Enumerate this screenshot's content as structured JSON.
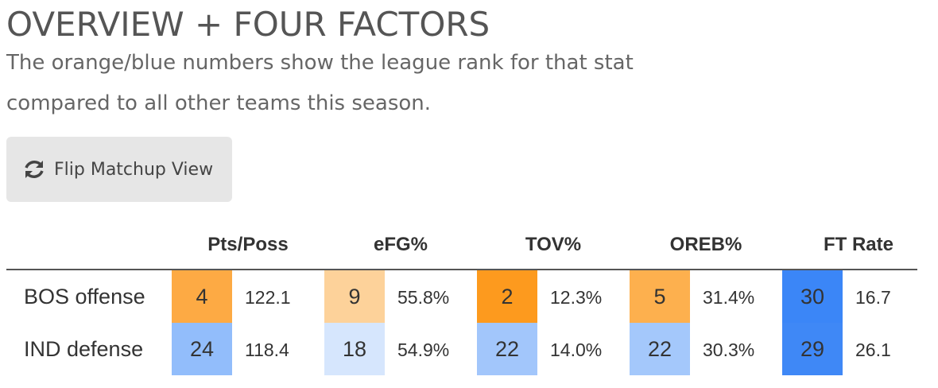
{
  "header": {
    "title": "OVERVIEW + FOUR FACTORS",
    "subtitle": [
      "The orange/blue numbers show the league rank for that stat",
      "compared to all other teams this season."
    ]
  },
  "button": {
    "label": "Flip Matchup View"
  },
  "table": {
    "columns": [
      "Pts/Poss",
      "eFG%",
      "TOV%",
      "OREB%",
      "FT Rate"
    ],
    "rows": [
      {
        "label": "BOS offense",
        "cells": [
          {
            "rank": 4,
            "value": "122.1",
            "color": "#fdaa44"
          },
          {
            "rank": 9,
            "value": "55.8%",
            "color": "#fdd29a"
          },
          {
            "rank": 2,
            "value": "12.3%",
            "color": "#fd9a1e"
          },
          {
            "rank": 5,
            "value": "31.4%",
            "color": "#fdb04e"
          },
          {
            "rank": 30,
            "value": "16.7",
            "color": "#3b86f7"
          }
        ]
      },
      {
        "label": "IND defense",
        "cells": [
          {
            "rank": 24,
            "value": "118.4",
            "color": "#92bdfb"
          },
          {
            "rank": 18,
            "value": "54.9%",
            "color": "#d6e6fd"
          },
          {
            "rank": 22,
            "value": "14.0%",
            "color": "#a2c6fb"
          },
          {
            "rank": 22,
            "value": "30.3%",
            "color": "#a4c8fb"
          },
          {
            "rank": 29,
            "value": "26.1",
            "color": "#3f88f6"
          }
        ]
      }
    ]
  }
}
